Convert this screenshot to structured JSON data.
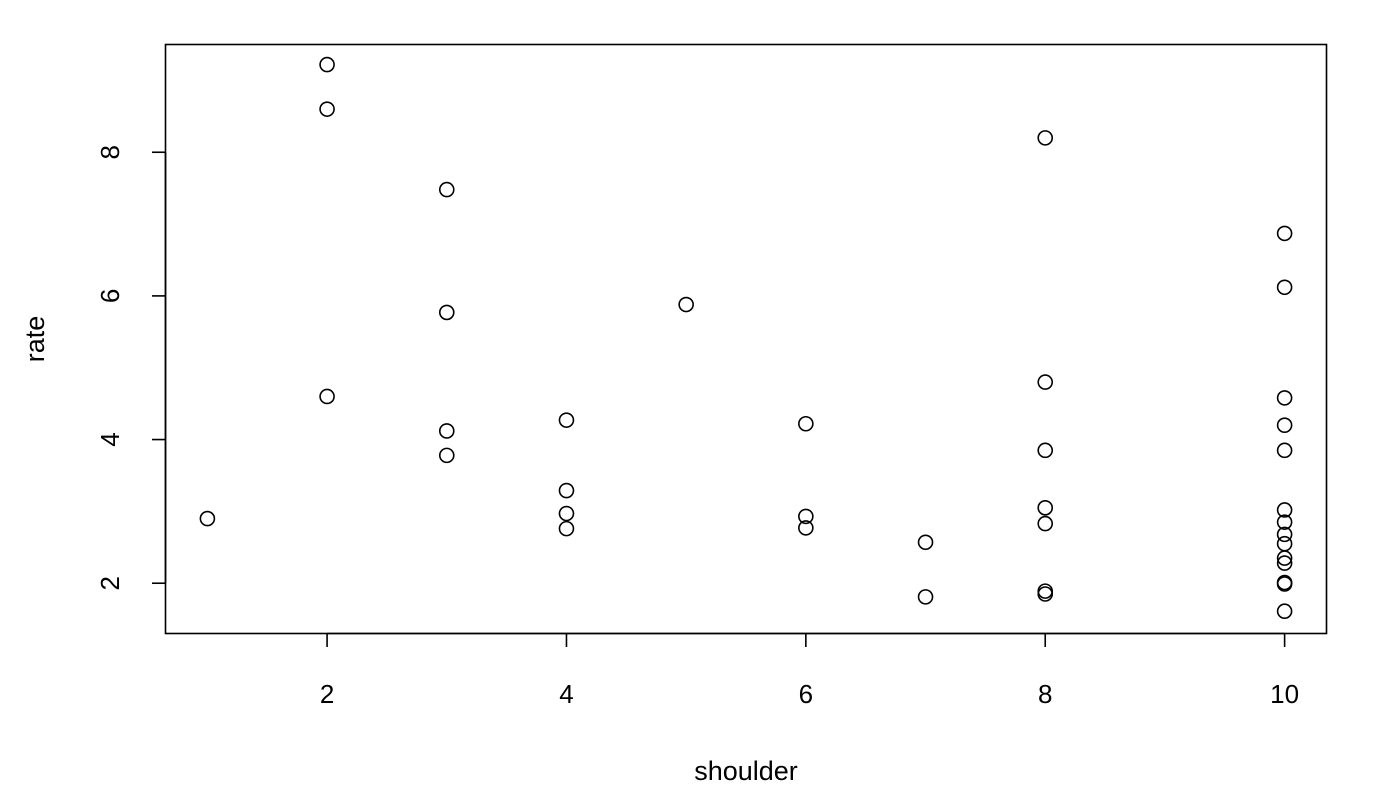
{
  "chart_data": {
    "type": "scatter",
    "title": "",
    "xlabel": "shoulder",
    "ylabel": "rate",
    "xlim": [
      0.65,
      10.35
    ],
    "ylim": [
      1.3,
      9.5
    ],
    "xticks": [
      2,
      4,
      6,
      8,
      10
    ],
    "yticks": [
      2,
      4,
      6,
      8
    ],
    "grid": false,
    "legend": "none",
    "marker": "open-circle",
    "color": "#000000",
    "points": [
      {
        "x": 1,
        "y": 2.9
      },
      {
        "x": 2,
        "y": 9.22
      },
      {
        "x": 2,
        "y": 8.6
      },
      {
        "x": 2,
        "y": 4.6
      },
      {
        "x": 3,
        "y": 7.48
      },
      {
        "x": 3,
        "y": 5.77
      },
      {
        "x": 3,
        "y": 4.12
      },
      {
        "x": 3,
        "y": 3.78
      },
      {
        "x": 4,
        "y": 4.27
      },
      {
        "x": 4,
        "y": 3.29
      },
      {
        "x": 4,
        "y": 2.97
      },
      {
        "x": 4,
        "y": 2.76
      },
      {
        "x": 5,
        "y": 5.88
      },
      {
        "x": 6,
        "y": 4.22
      },
      {
        "x": 6,
        "y": 2.93
      },
      {
        "x": 6,
        "y": 2.77
      },
      {
        "x": 7,
        "y": 2.57
      },
      {
        "x": 7,
        "y": 1.81
      },
      {
        "x": 8,
        "y": 8.2
      },
      {
        "x": 8,
        "y": 4.8
      },
      {
        "x": 8,
        "y": 3.85
      },
      {
        "x": 8,
        "y": 3.05
      },
      {
        "x": 8,
        "y": 2.83
      },
      {
        "x": 8,
        "y": 1.89
      },
      {
        "x": 8,
        "y": 1.85
      },
      {
        "x": 10,
        "y": 6.87
      },
      {
        "x": 10,
        "y": 6.12
      },
      {
        "x": 10,
        "y": 4.58
      },
      {
        "x": 10,
        "y": 4.2
      },
      {
        "x": 10,
        "y": 3.85
      },
      {
        "x": 10,
        "y": 3.02
      },
      {
        "x": 10,
        "y": 2.85
      },
      {
        "x": 10,
        "y": 2.68
      },
      {
        "x": 10,
        "y": 2.55
      },
      {
        "x": 10,
        "y": 2.35
      },
      {
        "x": 10,
        "y": 2.28
      },
      {
        "x": 10,
        "y": 2.01
      },
      {
        "x": 10,
        "y": 1.99
      },
      {
        "x": 10,
        "y": 1.61
      }
    ]
  }
}
